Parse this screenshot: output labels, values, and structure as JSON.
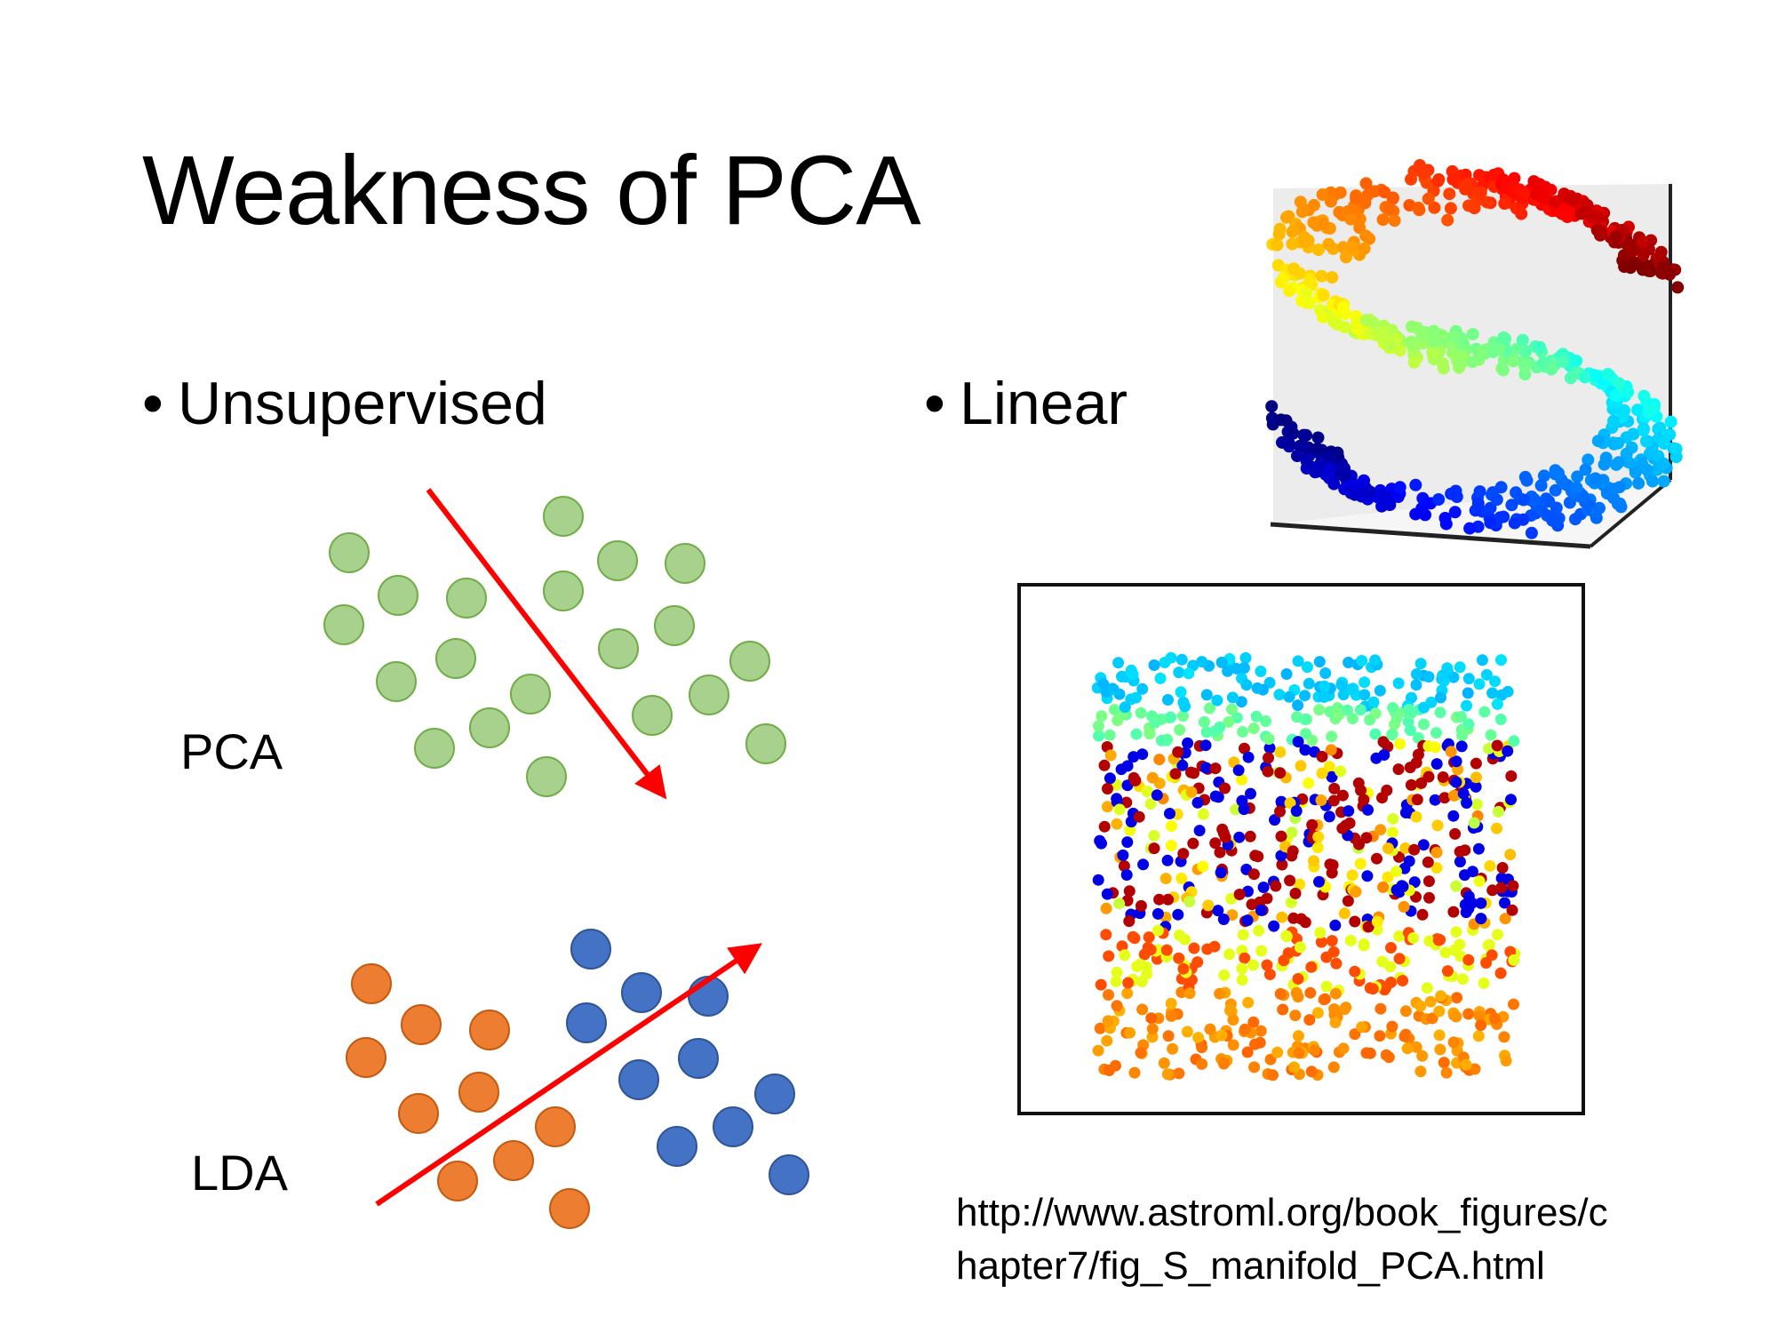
{
  "slide": {
    "title": "Weakness of PCA",
    "bullets": [
      {
        "symbol": "•",
        "text": "Unsupervised"
      },
      {
        "symbol": "•",
        "text": "Linear"
      }
    ],
    "labels": {
      "pca": "PCA",
      "lda": "LDA"
    },
    "url_lines": [
      "http://www.astroml.org/book_figures/c",
      "hapter7/fig_S_manifold_PCA.html"
    ]
  },
  "colors": {
    "pca_points_fill": "#a9d18e",
    "pca_points_stroke": "#70ad47",
    "lda_class_a_fill": "#ed7d31",
    "lda_class_b_fill": "#4472c4",
    "arrow": "#ff0000",
    "colormap": "jet"
  }
}
